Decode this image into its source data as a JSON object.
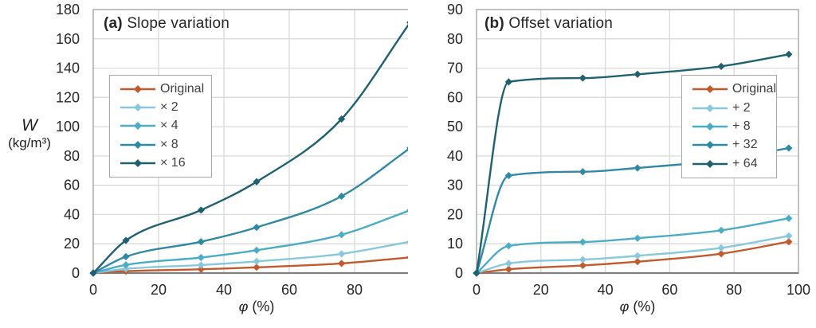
{
  "palette": {
    "gridline": "#d9d9d9",
    "plot_border": "#a6a6a6",
    "axis_line": "#7f7f7f",
    "tick_text": "#262626",
    "legend_text": "#3f3f3f",
    "background": "#ffffff"
  },
  "chart_data": [
    {
      "type": "line",
      "panel": "a",
      "title_prefix": "(a)",
      "title": "Slope variation",
      "xlabel_symbol": "φ",
      "xlabel_units": "(%)",
      "ylabel_symbol": "W",
      "ylabel_units": "(kg/m³)",
      "x": [
        0,
        10,
        33,
        50,
        76,
        97
      ],
      "xlim": [
        0,
        100
      ],
      "xtick_step": 20,
      "ylim": [
        0,
        180
      ],
      "ytick_step": 20,
      "grid": true,
      "marker": "diamond",
      "legend_position": "upper-left-inside",
      "series": [
        {
          "name": "Original",
          "color": "#c05a2c",
          "values": [
            0,
            1.3,
            2.6,
            3.9,
            6.6,
            10.7
          ]
        },
        {
          "name": "× 2",
          "color": "#87c8dd",
          "values": [
            0,
            2.9,
            5.5,
            8.0,
            13.1,
            21.4
          ]
        },
        {
          "name": "× 4",
          "color": "#4bacc6",
          "values": [
            0,
            5.6,
            10.6,
            15.6,
            26.2,
            42.9
          ]
        },
        {
          "name": "× 8",
          "color": "#2e89a5",
          "values": [
            0,
            11.2,
            21.4,
            31.2,
            52.5,
            85.4
          ]
        },
        {
          "name": "× 16",
          "color": "#1f6170",
          "values": [
            0,
            22.3,
            43.0,
            62.4,
            105.2,
            171.2
          ]
        }
      ]
    },
    {
      "type": "line",
      "panel": "b",
      "title_prefix": "(b)",
      "title": "Offset variation",
      "xlabel_symbol": "φ",
      "xlabel_units": "(%)",
      "x": [
        0,
        10,
        33,
        50,
        76,
        97
      ],
      "xlim": [
        0,
        100
      ],
      "xtick_step": 20,
      "ylim": [
        0,
        90
      ],
      "ytick_step": 10,
      "grid": true,
      "marker": "diamond",
      "legend_position": "right-inside",
      "series": [
        {
          "name": "Original",
          "color": "#c05a2c",
          "values": [
            0,
            1.3,
            2.6,
            3.9,
            6.6,
            10.7
          ]
        },
        {
          "name": "+ 2",
          "color": "#87c8dd",
          "values": [
            0,
            3.3,
            4.6,
            5.9,
            8.6,
            12.7
          ]
        },
        {
          "name": "+ 8",
          "color": "#4bacc6",
          "values": [
            0,
            9.3,
            10.6,
            11.9,
            14.6,
            18.7
          ]
        },
        {
          "name": "+ 32",
          "color": "#2e89a5",
          "values": [
            0,
            33.3,
            34.6,
            35.9,
            38.6,
            42.7
          ]
        },
        {
          "name": "+ 64",
          "color": "#1f6170",
          "values": [
            0,
            65.3,
            66.6,
            67.9,
            70.6,
            74.7
          ]
        }
      ]
    }
  ]
}
